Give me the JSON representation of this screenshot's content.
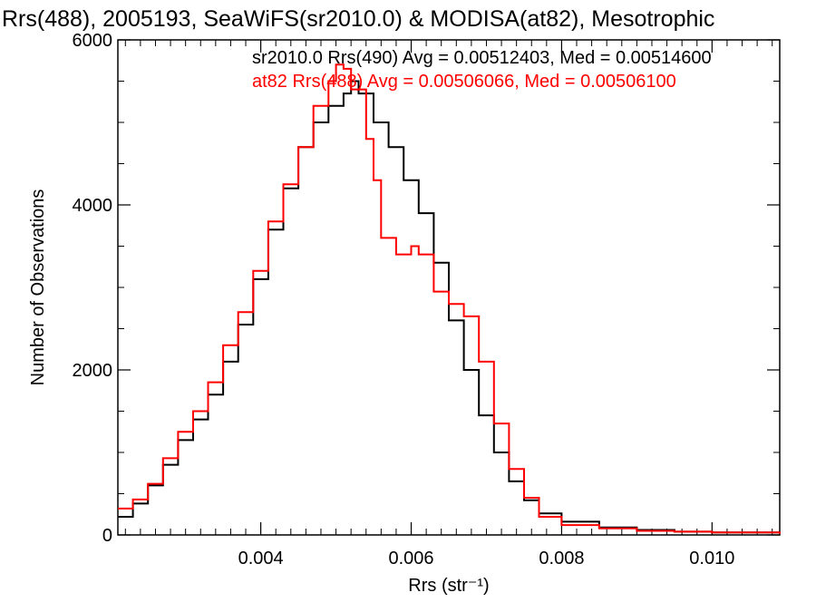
{
  "chart_data": {
    "type": "line",
    "title": "Rrs(488), 2005193, SeaWiFS(sr2010.0) & MODISA(at82), Mesotrophic",
    "xlabel": "Rrs (str⁻¹)",
    "ylabel": "Number of Observations",
    "xlim": [
      0.0021,
      0.0109
    ],
    "ylim": [
      0,
      6000
    ],
    "x_ticks": [
      "0.004",
      "0.006",
      "0.008",
      "0.010"
    ],
    "y_ticks": [
      "0",
      "2000",
      "4000",
      "6000"
    ],
    "series": [
      {
        "name": "sr2010.0 Rrs(490) Avg = 0.00512403, Med = 0.00514600",
        "color": "#000000",
        "points": [
          [
            0.0021,
            220
          ],
          [
            0.0023,
            380
          ],
          [
            0.0025,
            600
          ],
          [
            0.0027,
            850
          ],
          [
            0.0029,
            1150
          ],
          [
            0.0031,
            1400
          ],
          [
            0.0033,
            1700
          ],
          [
            0.0035,
            2100
          ],
          [
            0.0037,
            2550
          ],
          [
            0.0039,
            3100
          ],
          [
            0.0041,
            3700
          ],
          [
            0.0043,
            4200
          ],
          [
            0.0045,
            4700
          ],
          [
            0.0047,
            5000
          ],
          [
            0.0049,
            5200
          ],
          [
            0.0051,
            5350
          ],
          [
            0.0052,
            5500
          ],
          [
            0.0053,
            5350
          ],
          [
            0.0055,
            5000
          ],
          [
            0.0057,
            4700
          ],
          [
            0.0059,
            4300
          ],
          [
            0.0061,
            3900
          ],
          [
            0.0063,
            3300
          ],
          [
            0.0065,
            2600
          ],
          [
            0.0067,
            2000
          ],
          [
            0.0069,
            1450
          ],
          [
            0.0071,
            1000
          ],
          [
            0.0073,
            650
          ],
          [
            0.0075,
            420
          ],
          [
            0.0077,
            260
          ],
          [
            0.008,
            160
          ],
          [
            0.0085,
            90
          ],
          [
            0.009,
            60
          ],
          [
            0.0095,
            40
          ],
          [
            0.01,
            30
          ],
          [
            0.0109,
            20
          ]
        ]
      },
      {
        "name": "at82 Rrs(488) Avg = 0.00506066, Med = 0.00506100",
        "color": "#ff0000",
        "points": [
          [
            0.0021,
            320
          ],
          [
            0.0023,
            430
          ],
          [
            0.0025,
            620
          ],
          [
            0.0027,
            930
          ],
          [
            0.0029,
            1250
          ],
          [
            0.0031,
            1500
          ],
          [
            0.0033,
            1850
          ],
          [
            0.0035,
            2300
          ],
          [
            0.0037,
            2700
          ],
          [
            0.0039,
            3200
          ],
          [
            0.0041,
            3800
          ],
          [
            0.0043,
            4250
          ],
          [
            0.0045,
            4700
          ],
          [
            0.0047,
            5200
          ],
          [
            0.0049,
            5500
          ],
          [
            0.005,
            5700
          ],
          [
            0.0051,
            5650
          ],
          [
            0.0052,
            5400
          ],
          [
            0.0054,
            4800
          ],
          [
            0.0055,
            4300
          ],
          [
            0.0056,
            3600
          ],
          [
            0.0058,
            3400
          ],
          [
            0.006,
            3500
          ],
          [
            0.0061,
            3400
          ],
          [
            0.0063,
            2950
          ],
          [
            0.0065,
            2800
          ],
          [
            0.0067,
            2650
          ],
          [
            0.0069,
            2100
          ],
          [
            0.0071,
            1350
          ],
          [
            0.0073,
            800
          ],
          [
            0.0075,
            450
          ],
          [
            0.0077,
            220
          ],
          [
            0.008,
            120
          ],
          [
            0.0085,
            80
          ],
          [
            0.009,
            50
          ],
          [
            0.0095,
            40
          ],
          [
            0.01,
            30
          ],
          [
            0.0109,
            15
          ]
        ]
      }
    ]
  }
}
